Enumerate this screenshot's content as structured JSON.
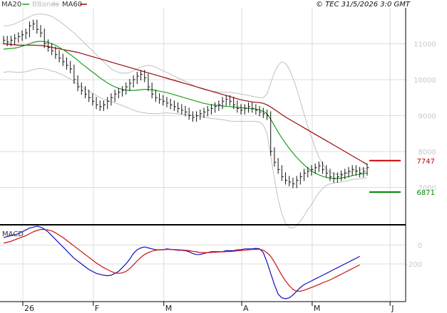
{
  "chart_data": [
    {
      "type": "line",
      "legend": [
        {
          "name": "MA20",
          "color": "#1aa01a"
        },
        {
          "name": "BBands",
          "color": "#c0c0c0"
        },
        {
          "name": "MA60",
          "color": "#9a0a0a"
        }
      ],
      "copyright": "© TEC 31/5/2026 3:0 GMT",
      "x_labels": [
        {
          "label": "26",
          "index": 0
        },
        {
          "label": "F",
          "index": 19
        },
        {
          "label": "M",
          "index": 38
        },
        {
          "label": "A",
          "index": 59
        },
        {
          "label": "M",
          "index": 78
        },
        {
          "label": "J",
          "index": 99
        }
      ],
      "y_ticks": [
        {
          "label": "11000",
          "value": 11000
        },
        {
          "label": "10000",
          "value": 10000
        },
        {
          "label": "9000",
          "value": 9000
        },
        {
          "label": "8000",
          "value": 8000
        },
        {
          "label": "7000",
          "value": 7000
        }
      ],
      "ylim": [
        6000,
        12000
      ],
      "grid": true,
      "legend_position": "top-left",
      "levels": [
        {
          "label": "7747",
          "value": 7747,
          "color": "#cc0000"
        },
        {
          "label": "6871",
          "value": 6871,
          "color": "#008800"
        }
      ],
      "price_color": "#111111",
      "series": [
        {
          "name": "Price",
          "values": [
            11100,
            11050,
            11100,
            11150,
            11200,
            11250,
            11300,
            11500,
            11550,
            11400,
            11300,
            11000,
            10900,
            10800,
            10700,
            10600,
            10500,
            10400,
            10300,
            10000,
            9800,
            9700,
            9600,
            9500,
            9400,
            9300,
            9250,
            9300,
            9400,
            9500,
            9600,
            9650,
            9700,
            9800,
            9900,
            10000,
            10100,
            10150,
            10050,
            9800,
            9600,
            9500,
            9450,
            9400,
            9350,
            9300,
            9250,
            9200,
            9150,
            9100,
            9000,
            8950,
            9000,
            9050,
            9100,
            9150,
            9200,
            9250,
            9300,
            9400,
            9450,
            9400,
            9300,
            9200,
            9150,
            9200,
            9250,
            9200,
            9150,
            9100,
            9050,
            9000,
            8000,
            7700,
            7500,
            7300,
            7200,
            7150,
            7100,
            7200,
            7300,
            7400,
            7450,
            7500,
            7550,
            7600,
            7500,
            7400,
            7300,
            7250,
            7300,
            7350,
            7400,
            7450,
            7500,
            7450,
            7400,
            7450,
            7550
          ]
        },
        {
          "name": "MA20",
          "values": [
            10850,
            10860,
            10870,
            10880,
            10900,
            10930,
            10960,
            11000,
            11040,
            11060,
            11070,
            11060,
            11040,
            11000,
            10960,
            10900,
            10840,
            10770,
            10700,
            10620,
            10540,
            10450,
            10370,
            10290,
            10210,
            10130,
            10050,
            9980,
            9910,
            9850,
            9800,
            9760,
            9730,
            9710,
            9700,
            9700,
            9710,
            9720,
            9730,
            9730,
            9720,
            9700,
            9680,
            9660,
            9640,
            9610,
            9580,
            9550,
            9520,
            9490,
            9460,
            9430,
            9400,
            9370,
            9340,
            9320,
            9300,
            9290,
            9280,
            9270,
            9260,
            9250,
            9240,
            9230,
            9220,
            9210,
            9200,
            9190,
            9180,
            9160,
            9120,
            9050,
            8900,
            8720,
            8540,
            8380,
            8230,
            8090,
            7960,
            7840,
            7730,
            7630,
            7540,
            7460,
            7400,
            7350,
            7310,
            7280,
            7260,
            7250,
            7250,
            7260,
            7280,
            7300,
            7330,
            7350,
            7370,
            7390,
            7400
          ]
        },
        {
          "name": "MA60",
          "values": [
            11000,
            10990,
            10980,
            10970,
            10960,
            10960,
            10960,
            10960,
            10960,
            10955,
            10950,
            10940,
            10920,
            10900,
            10880,
            10860,
            10840,
            10820,
            10800,
            10780,
            10760,
            10730,
            10700,
            10670,
            10640,
            10610,
            10580,
            10550,
            10520,
            10490,
            10460,
            10430,
            10400,
            10370,
            10340,
            10310,
            10280,
            10250,
            10220,
            10190,
            10160,
            10130,
            10100,
            10070,
            10040,
            10010,
            9980,
            9950,
            9920,
            9890,
            9860,
            9830,
            9800,
            9770,
            9740,
            9710,
            9680,
            9650,
            9620,
            9590,
            9560,
            9530,
            9500,
            9470,
            9440,
            9420,
            9400,
            9380,
            9370,
            9360,
            9340,
            9300,
            9240,
            9170,
            9100,
            9030,
            8960,
            8900,
            8840,
            8780,
            8720,
            8660,
            8600,
            8540,
            8480,
            8420,
            8360,
            8300,
            8240,
            8180,
            8120,
            8060,
            8000,
            7940,
            7880,
            7820,
            7760,
            7700,
            7640
          ]
        },
        {
          "name": "BB Upper",
          "values": [
            11500,
            11500,
            11520,
            11550,
            11600,
            11650,
            11700,
            11750,
            11800,
            11820,
            11830,
            11820,
            11800,
            11760,
            11700,
            11630,
            11550,
            11470,
            11380,
            11300,
            11200,
            11100,
            11000,
            10900,
            10800,
            10700,
            10600,
            10500,
            10400,
            10300,
            10250,
            10200,
            10180,
            10180,
            10200,
            10250,
            10300,
            10350,
            10380,
            10400,
            10380,
            10350,
            10300,
            10250,
            10200,
            10150,
            10100,
            10050,
            10000,
            9950,
            9900,
            9850,
            9800,
            9760,
            9720,
            9700,
            9680,
            9670,
            9660,
            9650,
            9650,
            9650,
            9640,
            9620,
            9600,
            9580,
            9560,
            9540,
            9520,
            9500,
            9500,
            9600,
            9900,
            10200,
            10400,
            10500,
            10450,
            10300,
            10050,
            9750,
            9400,
            9050,
            8700,
            8400,
            8100,
            7850,
            7650,
            7500,
            7420,
            7380,
            7360,
            7370,
            7390,
            7410,
            7440,
            7470,
            7500,
            7520,
            7530
          ]
        },
        {
          "name": "BB Lower",
          "values": [
            10200,
            10220,
            10220,
            10210,
            10200,
            10210,
            10220,
            10250,
            10280,
            10300,
            10310,
            10300,
            10280,
            10240,
            10220,
            10170,
            10130,
            10070,
            10020,
            9940,
            9880,
            9800,
            9740,
            9680,
            9620,
            9560,
            9500,
            9460,
            9420,
            9400,
            9350,
            9320,
            9280,
            9240,
            9200,
            9150,
            9120,
            9090,
            9080,
            9060,
            9060,
            9050,
            9060,
            9070,
            9080,
            9070,
            9060,
            9050,
            9040,
            9030,
            9020,
            9010,
            9000,
            8980,
            8960,
            8940,
            8920,
            8910,
            8900,
            8890,
            8870,
            8850,
            8840,
            8840,
            8840,
            8840,
            8840,
            8840,
            8840,
            8820,
            8740,
            8500,
            7900,
            7240,
            6680,
            6260,
            6010,
            5880,
            5870,
            5930,
            6060,
            6210,
            6380,
            6520,
            6700,
            6850,
            6970,
            7060,
            7100,
            7120,
            7140,
            7150,
            7170,
            7190,
            7220,
            7230,
            7240,
            7260,
            7270
          ]
        }
      ]
    },
    {
      "type": "line",
      "title": "MACD",
      "ylim": [
        -600,
        200
      ],
      "y_ticks": [
        {
          "label": "0",
          "value": 0
        },
        {
          "label": "-200",
          "value": -200
        }
      ],
      "grid": true,
      "series": [
        {
          "name": "MACD",
          "color": "#1010c0",
          "values": [
            80,
            90,
            100,
            110,
            120,
            140,
            160,
            180,
            190,
            200,
            190,
            170,
            140,
            100,
            60,
            20,
            -20,
            -60,
            -100,
            -140,
            -170,
            -200,
            -230,
            -260,
            -280,
            -300,
            -310,
            -320,
            -325,
            -320,
            -300,
            -280,
            -240,
            -200,
            -150,
            -90,
            -50,
            -30,
            -20,
            -30,
            -40,
            -50,
            -50,
            -50,
            -40,
            -45,
            -50,
            -55,
            -55,
            -60,
            -70,
            -90,
            -100,
            -100,
            -90,
            -80,
            -70,
            -70,
            -70,
            -70,
            -60,
            -60,
            -60,
            -50,
            -50,
            -40,
            -40,
            -40,
            -35,
            -40,
            -80,
            -180,
            -300,
            -420,
            -520,
            -560,
            -570,
            -560,
            -530,
            -490,
            -450,
            -420,
            -400,
            -380,
            -360,
            -340,
            -320,
            -300,
            -280,
            -260,
            -240,
            -220,
            -200,
            -180,
            -160,
            -140,
            -120
          ]
        },
        {
          "name": "Signal",
          "color": "#cc1010",
          "values": [
            20,
            30,
            40,
            55,
            70,
            85,
            100,
            120,
            140,
            155,
            165,
            165,
            160,
            150,
            130,
            105,
            80,
            50,
            20,
            -10,
            -40,
            -70,
            -100,
            -130,
            -160,
            -190,
            -215,
            -240,
            -260,
            -280,
            -295,
            -300,
            -295,
            -280,
            -250,
            -210,
            -170,
            -130,
            -100,
            -80,
            -65,
            -55,
            -50,
            -48,
            -46,
            -46,
            -48,
            -50,
            -52,
            -55,
            -60,
            -66,
            -72,
            -80,
            -80,
            -80,
            -78,
            -76,
            -74,
            -72,
            -70,
            -68,
            -66,
            -62,
            -58,
            -54,
            -50,
            -47,
            -45,
            -45,
            -55,
            -80,
            -120,
            -180,
            -250,
            -320,
            -380,
            -430,
            -470,
            -490,
            -490,
            -480,
            -465,
            -450,
            -435,
            -420,
            -400,
            -385,
            -370,
            -350,
            -330,
            -310,
            -290,
            -270,
            -250,
            -230,
            -210
          ]
        }
      ]
    }
  ]
}
